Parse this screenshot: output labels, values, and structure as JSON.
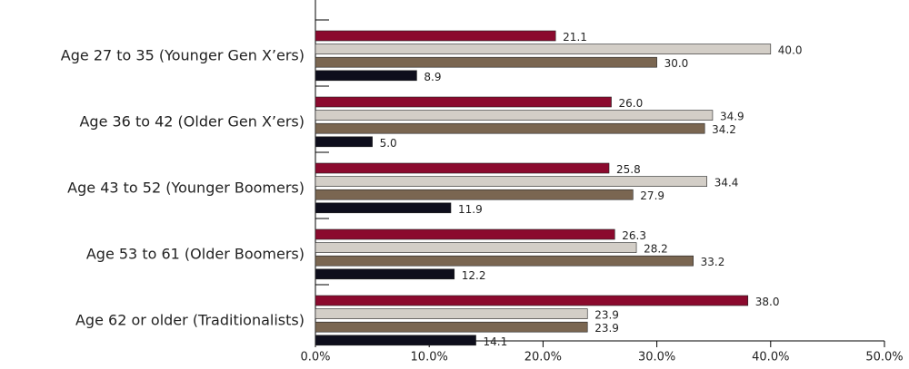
{
  "chart_data": {
    "type": "hbar",
    "categories": [
      "Age 27 to 35 (Younger Gen X’ers)",
      "Age 36 to 42 (Older Gen X’ers)",
      "Age 43 to 52 (Younger Boomers)",
      "Age 53 to 61 (Older Boomers)",
      "Age 62 or older (Traditionalists)"
    ],
    "series": [
      {
        "color": "#8b0a2e",
        "values": [
          21.1,
          26.0,
          25.8,
          26.3,
          38.0
        ],
        "value_labels": [
          "21.1",
          "26.0",
          "25.8",
          "26.3",
          "38.0"
        ]
      },
      {
        "color": "#d3cec7",
        "values": [
          40.0,
          34.9,
          34.4,
          28.2,
          23.9
        ],
        "value_labels": [
          "40.0",
          "34.9",
          "34.4",
          "28.2",
          "23.9"
        ]
      },
      {
        "color": "#7a6651",
        "values": [
          30.0,
          34.2,
          27.9,
          33.2,
          23.9
        ],
        "value_labels": [
          "30.0",
          "34.2",
          "27.9",
          "33.2",
          "23.9"
        ]
      },
      {
        "color": "#0e0e1c",
        "values": [
          8.9,
          5.0,
          11.9,
          12.2,
          14.1
        ],
        "value_labels": [
          "8.9",
          "5.0",
          "11.9",
          "12.2",
          "14.1"
        ]
      }
    ],
    "xlim": [
      0,
      50
    ],
    "xticks": [
      {
        "value": 0,
        "label": "0.0%"
      },
      {
        "value": 10,
        "label": "10.0%"
      },
      {
        "value": 20,
        "label": "20.0%"
      },
      {
        "value": 30,
        "label": "30.0%"
      },
      {
        "value": 40,
        "label": "40.0%"
      },
      {
        "value": 50,
        "label": "50.0%"
      }
    ]
  }
}
